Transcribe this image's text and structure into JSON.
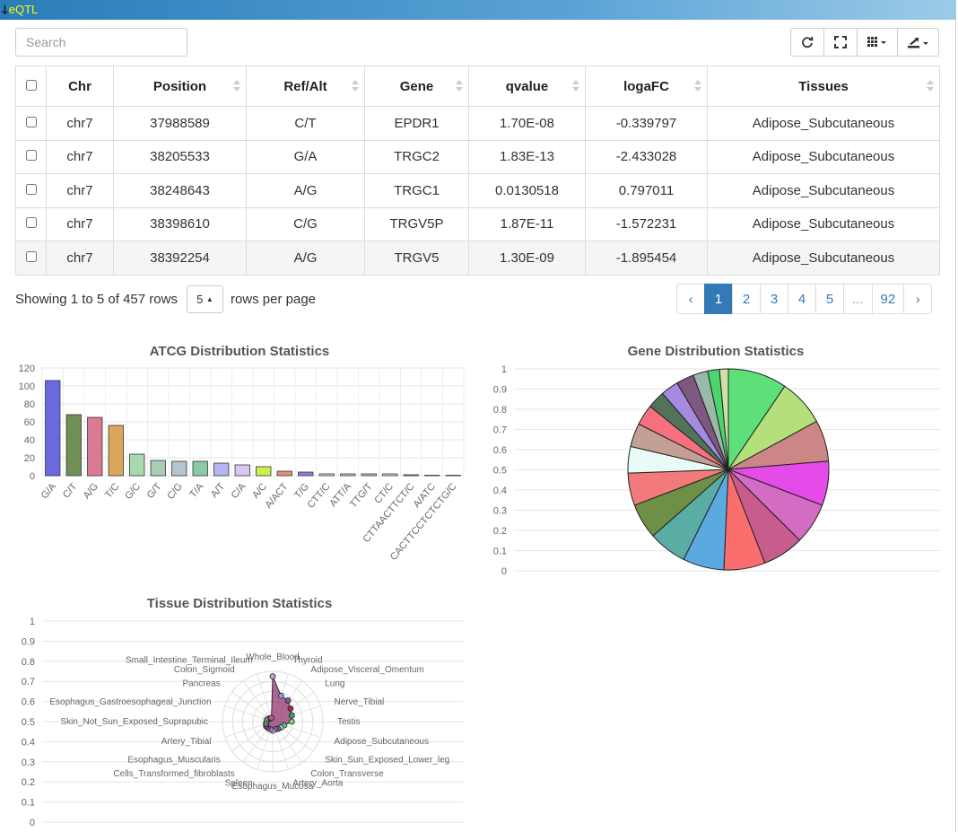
{
  "panel": {
    "title": "eQTL"
  },
  "search": {
    "placeholder": "Search"
  },
  "table": {
    "columns": [
      "Chr",
      "Position",
      "Ref/Alt",
      "Gene",
      "qvalue",
      "logaFC",
      "Tissues"
    ],
    "rows": [
      [
        "chr7",
        "37988589",
        "C/T",
        "EPDR1",
        "1.70E-08",
        "-0.339797",
        "Adipose_Subcutaneous"
      ],
      [
        "chr7",
        "38205533",
        "G/A",
        "TRGC2",
        "1.83E-13",
        "-2.433028",
        "Adipose_Subcutaneous"
      ],
      [
        "chr7",
        "38248643",
        "A/G",
        "TRGC1",
        "0.0130518",
        "0.797011",
        "Adipose_Subcutaneous"
      ],
      [
        "chr7",
        "38398610",
        "C/G",
        "TRGV5P",
        "1.87E-11",
        "-1.572231",
        "Adipose_Subcutaneous"
      ],
      [
        "chr7",
        "38392254",
        "A/G",
        "TRGV5",
        "1.30E-09",
        "-1.895454",
        "Adipose_Subcutaneous"
      ]
    ]
  },
  "footer": {
    "showing": "Showing 1 to 5 of 457 rows",
    "page_size": "5",
    "rows_per_page": "rows per page",
    "pages": [
      "‹",
      "1",
      "2",
      "3",
      "4",
      "5",
      "...",
      "92",
      "›"
    ]
  },
  "chart_data": [
    {
      "type": "bar",
      "title": "ATCG Distribution Statistics",
      "categories": [
        "G/A",
        "C/T",
        "A/G",
        "T/C",
        "G/C",
        "G/T",
        "C/G",
        "T/A",
        "A/T",
        "C/A",
        "A/C",
        "A/ACT",
        "T/G",
        "CTT/C",
        "ATT/A",
        "TTG/T",
        "CT/C",
        "CTTAACTTCT/C",
        "A/ATC",
        "CACTTCCTCTCTG/C"
      ],
      "values": [
        106,
        68,
        65,
        56,
        24,
        17,
        16,
        16,
        14,
        12,
        10,
        5,
        4,
        2,
        2,
        2,
        2,
        1,
        0.5,
        0.5
      ],
      "colors": [
        "#6a6ae0",
        "#6f8f55",
        "#dc7a93",
        "#d9a65c",
        "#a8d8ae",
        "#a7cdb4",
        "#b5c5cf",
        "#8ccaa7",
        "#b7b5f0",
        "#d9c6f5",
        "#c8f24b",
        "#e98a7c",
        "#8a7de0",
        "#d7e5d6",
        "#b7d8ea",
        "#b3d5e8",
        "#d8e7b9",
        "#ecb8c4",
        "#999999",
        "#888888"
      ],
      "ylim": [
        0,
        120
      ],
      "yticks": [
        "0",
        "20",
        "40",
        "60",
        "80",
        "100",
        "120"
      ],
      "grid": true
    },
    {
      "type": "pie",
      "title": "Gene Distribution Statistics",
      "values": [
        10,
        8,
        7,
        7.5,
        7,
        7,
        7,
        7,
        6.5,
        6,
        5.5,
        4.5,
        4,
        3.5,
        3,
        3,
        3,
        2.5,
        2,
        1.5
      ],
      "colors": [
        "#5de07a",
        "#b3e07a",
        "#cd8686",
        "#e44be8",
        "#d46cc3",
        "#c75c8d",
        "#fb6e6e",
        "#5ba9e0",
        "#5aada5",
        "#6e8f46",
        "#f27a7a",
        "#e8fbf6",
        "#c49f94",
        "#f7707e",
        "#52735a",
        "#a58ae0",
        "#7e587e",
        "#99b9a9",
        "#4ad66b",
        "#cfe0a7"
      ],
      "yticks": [
        "0",
        "0.1",
        "0.2",
        "0.3",
        "0.4",
        "0.5",
        "0.6",
        "0.7",
        "0.8",
        "0.9",
        "1"
      ]
    },
    {
      "type": "radar",
      "title": "Tissue Distribution Statistics",
      "labels": [
        "Whole_Blood",
        "Thyroid",
        "Adipose_Visceral_Omentum",
        "Lung",
        "Nerve_Tibial",
        "Testis",
        "Adipose_Subcutaneous",
        "Skin_Sun_Exposed_Lower_leg",
        "Colon_Transverse",
        "Artery_Aorta",
        "Esophagus_Mucosa",
        "Spleen",
        "Cells_Transformed_fibroblasts",
        "Esophagus_Muscularis",
        "Artery_Tibial",
        "Skin_Not_Sun_Exposed_Suprapubic",
        "Esophagus_Gastroesophageal_Junction",
        "Pancreas",
        "Colon_Sigmoid",
        "Small_Intestine_Terminal_Ileum"
      ],
      "values": [
        90,
        54,
        52,
        44,
        40,
        38,
        24,
        20,
        18,
        16,
        18,
        16,
        16,
        16,
        14,
        12,
        12,
        10,
        8,
        8
      ],
      "yticks": [
        "0",
        "0.1",
        "0.2",
        "0.3",
        "0.4",
        "0.5",
        "0.6",
        "0.7",
        "0.8",
        "0.9",
        "1"
      ]
    }
  ]
}
